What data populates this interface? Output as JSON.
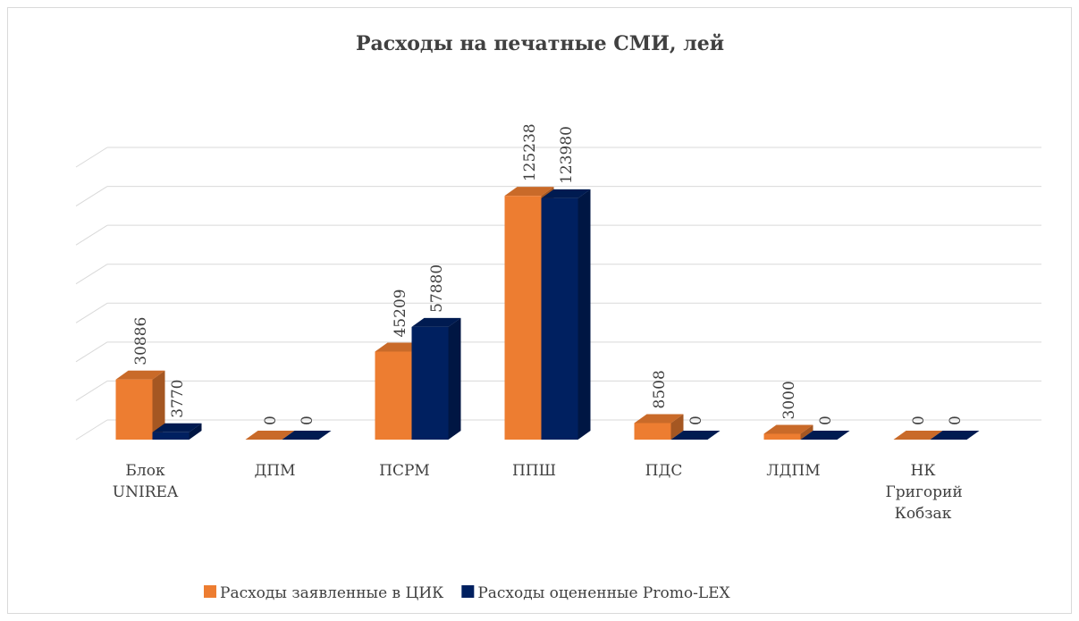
{
  "chart_data": {
    "type": "bar3d",
    "title": "Расходы на печатные СМИ, лей",
    "categories": [
      "Блок UNIREA",
      "ДПМ",
      "ПСРМ",
      "ППШ",
      "ПДС",
      "ЛДПМ",
      "НК Григорий Кобзак"
    ],
    "series": [
      {
        "name": "Расходы заявленные в ЦИК",
        "color": "#ed7d31",
        "values": [
          30886,
          0,
          45209,
          125238,
          8508,
          3000,
          0
        ]
      },
      {
        "name": "Расходы оцененные Promo-LEX",
        "color": "#002060",
        "values": [
          3770,
          0,
          57880,
          123980,
          0,
          0,
          0
        ]
      }
    ],
    "ylim": [
      0,
      140000
    ],
    "yticks": [
      0,
      20000,
      40000,
      60000,
      80000,
      100000,
      120000,
      140000
    ],
    "grid": true
  }
}
